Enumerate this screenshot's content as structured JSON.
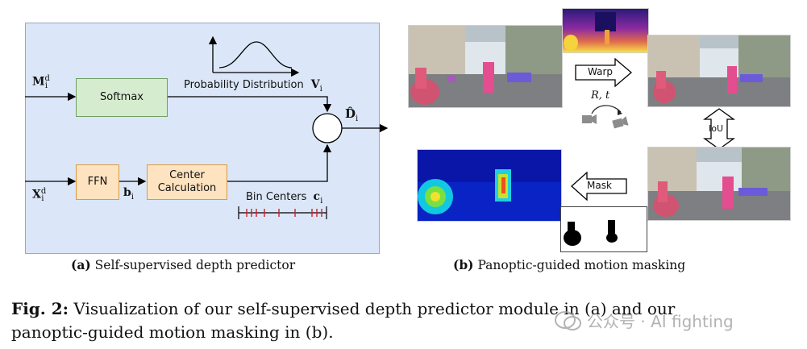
{
  "panel_a": {
    "softmax": "Softmax",
    "ffn": "FFN",
    "center_calc_1": "Center",
    "center_calc_2": "Calculation",
    "prob_dist": "Probability Distribution",
    "prob_var": "V",
    "prob_sub": "i",
    "bin_centers": "Bin Centers",
    "bin_var": "c",
    "bin_sub": "i",
    "input_m": "M",
    "input_m_sup": "d",
    "input_m_sub": "i",
    "input_x": "X",
    "input_x_sup": "d",
    "input_x_sub": "i",
    "b_var": "b",
    "b_sub": "i",
    "output_d": "D̂",
    "output_sub": "i"
  },
  "panel_b": {
    "warp": "Warp",
    "rt": "R, t",
    "iou": "IoU",
    "mask": "Mask"
  },
  "captions": {
    "a_tag": "(a)",
    "a_text": "Self-supervised depth predictor",
    "b_tag": "(b)",
    "b_text": "Panoptic-guided motion masking"
  },
  "figure": {
    "tag": "Fig. 2:",
    "line1": "Visualization of our self-supervised depth predictor module in (a) and our",
    "line2": "panoptic-guided motion masking in (b).",
    "watermark": "公众号 · AI fighting"
  },
  "colors": {
    "panel_bg": "#dbe7f8",
    "softmax_fill": "#d6eccf",
    "ffn_fill": "#fde3c0",
    "tick_red": "#d0202a"
  }
}
